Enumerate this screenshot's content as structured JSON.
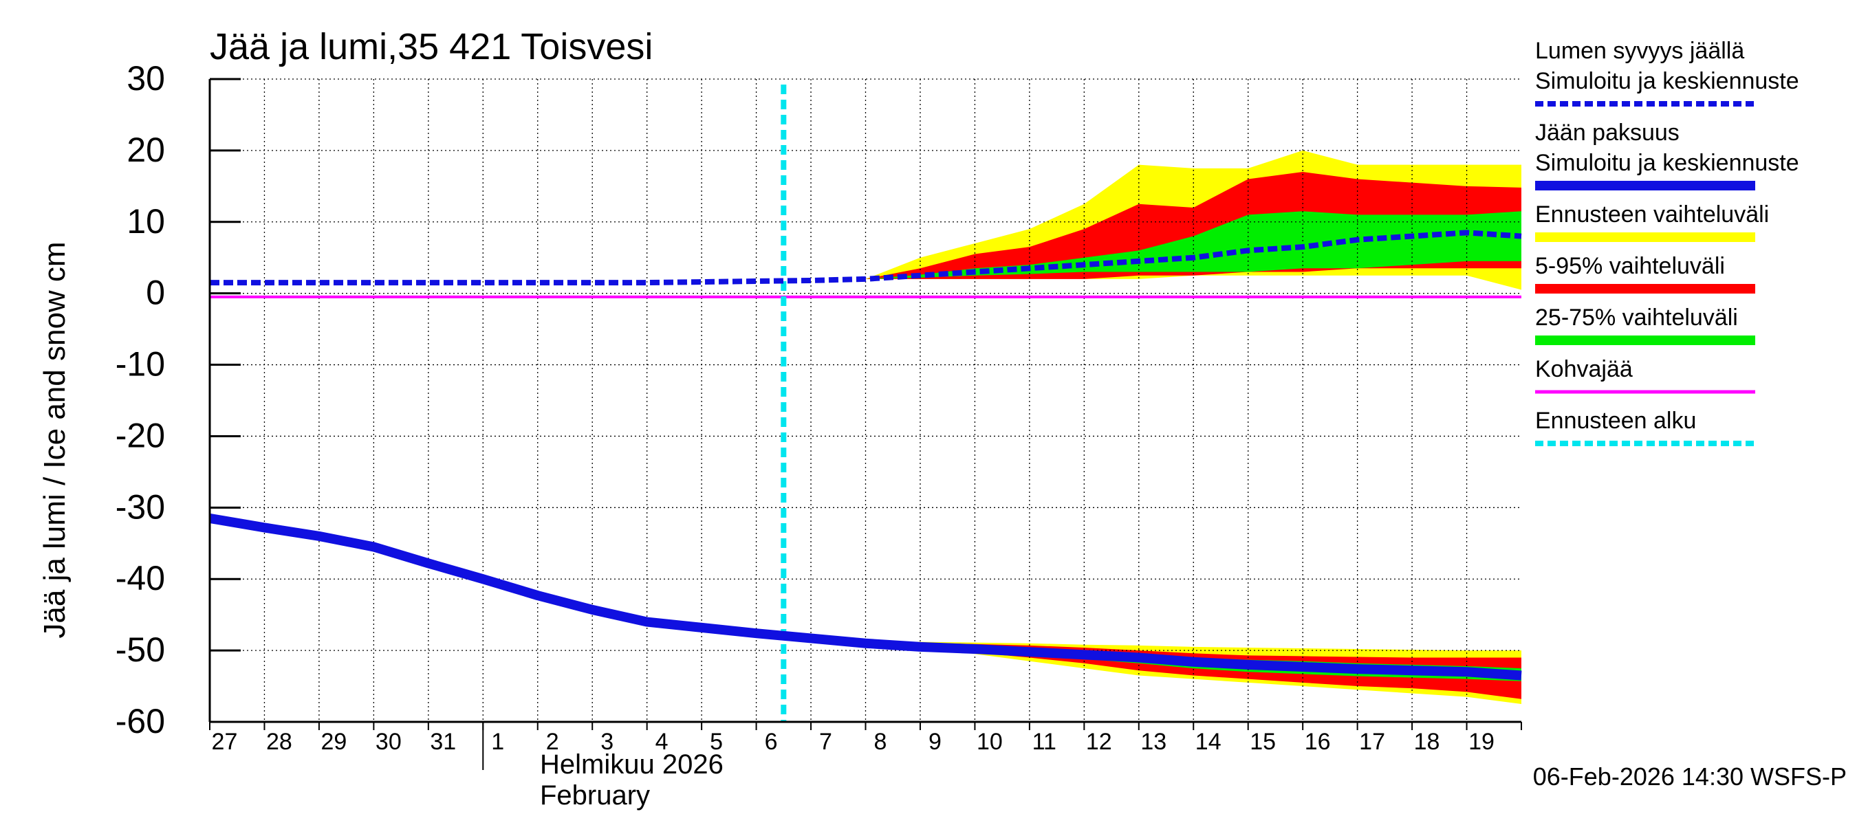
{
  "chart_data": {
    "type": "area",
    "title": "Jää ja lumi,35 421 Toisvesi",
    "ylabel": "Jää ja lumi / Ice and snow    cm",
    "xlabel_fi": "Helmikuu  2026",
    "xlabel_en": "February",
    "ylim": [
      -60,
      30
    ],
    "yticks": [
      30,
      20,
      10,
      0,
      -10,
      -20,
      -30,
      -40,
      -50,
      -60
    ],
    "day_labels": [
      "27",
      "28",
      "29",
      "30",
      "31",
      "1",
      "2",
      "3",
      "4",
      "5",
      "6",
      "7",
      "8",
      "9",
      "10",
      "11",
      "12",
      "13",
      "14",
      "15",
      "16",
      "17",
      "18",
      "19"
    ],
    "x_range_days": [
      0,
      24
    ],
    "month_boundary_day": 5,
    "forecast_start_day": 10.5,
    "frozen_ice_level": -0.5,
    "snow_depth": {
      "x": [
        0,
        1,
        2,
        3,
        4,
        5,
        6,
        7,
        8,
        9,
        10,
        11,
        12,
        13,
        14,
        15,
        16,
        17,
        18,
        19,
        20,
        21,
        22,
        23,
        24
      ],
      "median": [
        1.5,
        1.5,
        1.5,
        1.5,
        1.5,
        1.5,
        1.5,
        1.5,
        1.5,
        1.6,
        1.7,
        1.8,
        2.0,
        2.5,
        3.0,
        3.5,
        4.0,
        4.5,
        5.0,
        6.0,
        6.5,
        7.5,
        8.0,
        8.5,
        8.0
      ],
      "range_min": [
        1.5,
        1.5,
        1.5,
        1.5,
        1.5,
        1.5,
        1.5,
        1.5,
        1.5,
        1.6,
        1.7,
        1.8,
        2.0,
        2.0,
        2.0,
        2.0,
        2.0,
        2.0,
        2.5,
        2.5,
        2.5,
        2.5,
        2.5,
        2.5,
        0.5
      ],
      "range_max": [
        1.5,
        1.5,
        1.5,
        1.5,
        1.5,
        1.5,
        1.5,
        1.5,
        1.5,
        1.6,
        1.7,
        1.8,
        2.0,
        5.0,
        7.0,
        9.0,
        12.5,
        18.0,
        17.5,
        17.5,
        20.0,
        18.0,
        18.0,
        18.0,
        18.0
      ],
      "p5": [
        1.5,
        1.5,
        1.5,
        1.5,
        1.5,
        1.5,
        1.5,
        1.5,
        1.5,
        1.6,
        1.7,
        1.8,
        2.0,
        2.0,
        2.0,
        2.0,
        2.0,
        2.5,
        2.5,
        3.0,
        3.0,
        3.5,
        3.5,
        3.5,
        3.5
      ],
      "p95": [
        1.5,
        1.5,
        1.5,
        1.5,
        1.5,
        1.5,
        1.5,
        1.5,
        1.5,
        1.6,
        1.7,
        1.8,
        2.0,
        3.5,
        5.5,
        6.5,
        9.0,
        12.5,
        12.0,
        16.0,
        17.0,
        16.0,
        15.5,
        15.0,
        14.8
      ],
      "p25": [
        1.5,
        1.5,
        1.5,
        1.5,
        1.5,
        1.5,
        1.5,
        1.5,
        1.5,
        1.6,
        1.7,
        1.8,
        2.0,
        2.2,
        2.5,
        2.7,
        3.0,
        3.0,
        3.0,
        3.0,
        3.5,
        3.5,
        4.0,
        4.5,
        4.5
      ],
      "p75": [
        1.5,
        1.5,
        1.5,
        1.5,
        1.5,
        1.5,
        1.5,
        1.5,
        1.5,
        1.6,
        1.7,
        1.8,
        2.0,
        2.6,
        3.5,
        4.0,
        5.0,
        6.0,
        8.0,
        11.0,
        11.5,
        11.0,
        11.0,
        11.0,
        11.5
      ]
    },
    "ice_thickness": {
      "x": [
        0,
        1,
        2,
        3,
        4,
        5,
        6,
        7,
        8,
        9,
        10,
        11,
        12,
        13,
        14,
        15,
        16,
        17,
        18,
        19,
        20,
        21,
        22,
        23,
        24
      ],
      "median": [
        -31.5,
        -32.8,
        -34.0,
        -35.5,
        -37.8,
        -40.0,
        -42.3,
        -44.3,
        -46.0,
        -46.8,
        -47.6,
        -48.3,
        -49.0,
        -49.5,
        -49.8,
        -50.2,
        -50.6,
        -51.0,
        -51.6,
        -52.0,
        -52.3,
        -52.6,
        -52.8,
        -53.0,
        -53.5
      ],
      "range_top": [
        -31.5,
        -32.8,
        -34.0,
        -35.5,
        -37.8,
        -40.0,
        -42.3,
        -44.3,
        -46.0,
        -46.8,
        -47.6,
        -48.3,
        -48.7,
        -48.8,
        -48.9,
        -49.0,
        -49.2,
        -49.3,
        -49.5,
        -49.6,
        -49.7,
        -49.8,
        -49.9,
        -50.0,
        -50.0
      ],
      "range_bottom": [
        -31.5,
        -32.8,
        -34.0,
        -35.5,
        -37.8,
        -40.0,
        -42.3,
        -44.3,
        -46.0,
        -46.8,
        -47.6,
        -48.3,
        -49.0,
        -49.8,
        -50.5,
        -51.5,
        -52.5,
        -53.5,
        -54.0,
        -54.5,
        -55.0,
        -55.5,
        -56.0,
        -56.5,
        -57.5
      ],
      "p5": [
        -31.5,
        -32.8,
        -34.0,
        -35.5,
        -37.8,
        -40.0,
        -42.3,
        -44.3,
        -46.0,
        -46.8,
        -47.6,
        -48.3,
        -49.0,
        -49.7,
        -50.3,
        -51.0,
        -51.8,
        -52.8,
        -53.5,
        -54.0,
        -54.5,
        -55.0,
        -55.3,
        -55.8,
        -56.8
      ],
      "p95": [
        -31.5,
        -32.8,
        -34.0,
        -35.5,
        -37.8,
        -40.0,
        -42.3,
        -44.3,
        -46.0,
        -46.8,
        -47.6,
        -48.3,
        -48.8,
        -48.9,
        -49.1,
        -49.3,
        -49.6,
        -50.0,
        -50.4,
        -50.7,
        -50.8,
        -50.9,
        -51.0,
        -51.0,
        -51.0
      ],
      "p25": [
        -31.5,
        -32.8,
        -34.0,
        -35.5,
        -37.8,
        -40.0,
        -42.3,
        -44.3,
        -46.0,
        -46.8,
        -47.6,
        -48.3,
        -49.0,
        -49.6,
        -50.0,
        -50.5,
        -51.2,
        -51.8,
        -52.5,
        -53.0,
        -53.3,
        -53.6,
        -53.8,
        -54.0,
        -54.3
      ],
      "p75": [
        -31.5,
        -32.8,
        -34.0,
        -35.5,
        -37.8,
        -40.0,
        -42.3,
        -44.3,
        -46.0,
        -46.8,
        -47.6,
        -48.3,
        -48.9,
        -49.2,
        -49.5,
        -50.0,
        -50.2,
        -50.5,
        -51.0,
        -51.3,
        -51.5,
        -51.8,
        -52.0,
        -52.2,
        -52.5
      ]
    },
    "legend": [
      {
        "lines": [
          "Lumen syvyys jäällä",
          "Simuloitu ja keskiennuste"
        ],
        "color": "#1010e0",
        "style": "dashed"
      },
      {
        "lines": [
          "Jään paksuus",
          "Simuloitu ja keskiennuste"
        ],
        "color": "#1010e0",
        "style": "solid"
      },
      {
        "lines": [
          "Ennusteen vaihteluväli"
        ],
        "color": "#ffff00",
        "style": "solid"
      },
      {
        "lines": [
          "5-95% vaihteluväli"
        ],
        "color": "#ff0000",
        "style": "solid"
      },
      {
        "lines": [
          "25-75% vaihteluväli"
        ],
        "color": "#00ee00",
        "style": "solid"
      },
      {
        "lines": [
          "Kohvajää"
        ],
        "color": "#ff00ff",
        "style": "solid"
      },
      {
        "lines": [
          "Ennusteen alku"
        ],
        "color": "#00e5ee",
        "style": "dashed"
      }
    ],
    "footer": "06-Feb-2026 14:30 WSFS-P"
  }
}
